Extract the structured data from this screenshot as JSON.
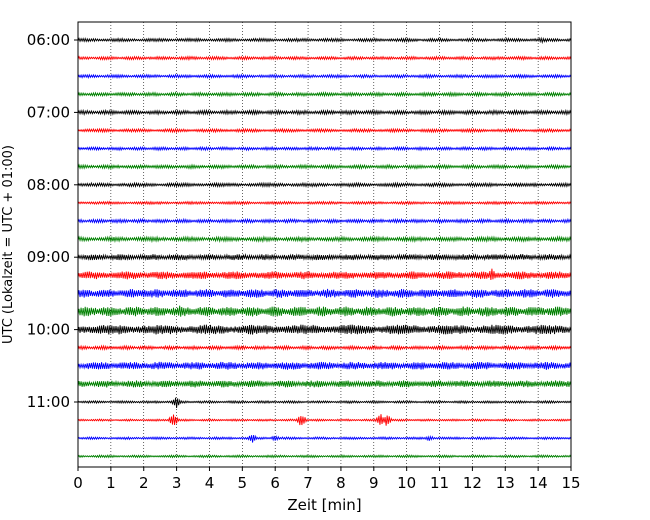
{
  "chart_data": {
    "type": "line",
    "xlabel": "Zeit  [min]",
    "ylabel": "UTC (Lokalzeit = UTC + 01:00)",
    "xlim": [
      0,
      15
    ],
    "x_ticks": [
      "0",
      "1",
      "2",
      "3",
      "4",
      "5",
      "6",
      "7",
      "8",
      "9",
      "10",
      "11",
      "12",
      "13",
      "14",
      "15"
    ],
    "y_ticks": [
      "06:00",
      "07:00",
      "08:00",
      "09:00",
      "10:00",
      "11:00"
    ],
    "grid": "vertical dotted",
    "colors": [
      "#000000",
      "#ff0000",
      "#0000ff",
      "#008000"
    ],
    "traces": [
      {
        "start": "06:00",
        "amp": 1.6,
        "events": [
          {
            "t": 14.1,
            "a": 3
          }
        ]
      },
      {
        "start": "06:15",
        "amp": 1.6,
        "events": []
      },
      {
        "start": "06:30",
        "amp": 1.6,
        "events": []
      },
      {
        "start": "06:45",
        "amp": 1.8,
        "events": []
      },
      {
        "start": "07:00",
        "amp": 2.0,
        "events": []
      },
      {
        "start": "07:15",
        "amp": 1.6,
        "events": []
      },
      {
        "start": "07:30",
        "amp": 1.6,
        "events": []
      },
      {
        "start": "07:45",
        "amp": 1.8,
        "events": []
      },
      {
        "start": "08:00",
        "amp": 1.8,
        "events": []
      },
      {
        "start": "08:15",
        "amp": 1.4,
        "events": []
      },
      {
        "start": "08:30",
        "amp": 1.8,
        "events": []
      },
      {
        "start": "08:45",
        "amp": 2.2,
        "events": []
      },
      {
        "start": "09:00",
        "amp": 3.0,
        "events": [
          {
            "t": 7.3,
            "a": 4
          }
        ]
      },
      {
        "start": "09:15",
        "amp": 4.0,
        "events": [
          {
            "t": 12.6,
            "a": 7
          }
        ]
      },
      {
        "start": "09:30",
        "amp": 4.5,
        "events": [
          {
            "t": 2.0,
            "a": 6
          },
          {
            "t": 13.6,
            "a": 7
          }
        ]
      },
      {
        "start": "09:45",
        "amp": 5.0,
        "events": [
          {
            "t": 3.1,
            "a": 7
          }
        ]
      },
      {
        "start": "10:00",
        "amp": 5.0,
        "events": []
      },
      {
        "start": "10:15",
        "amp": 1.8,
        "events": []
      },
      {
        "start": "10:30",
        "amp": 4.0,
        "events": []
      },
      {
        "start": "10:45",
        "amp": 3.5,
        "events": [
          {
            "t": 14.9,
            "a": 4
          }
        ]
      },
      {
        "start": "11:00",
        "amp": 1.2,
        "events": [
          {
            "t": 3.0,
            "a": 6
          }
        ]
      },
      {
        "start": "11:15",
        "amp": 1.0,
        "events": [
          {
            "t": 2.9,
            "a": 8
          },
          {
            "t": 6.8,
            "a": 7
          },
          {
            "t": 9.2,
            "a": 7
          },
          {
            "t": 9.4,
            "a": 7
          }
        ]
      },
      {
        "start": "11:30",
        "amp": 1.2,
        "events": [
          {
            "t": 5.3,
            "a": 5
          },
          {
            "t": 6.0,
            "a": 3
          },
          {
            "t": 10.7,
            "a": 3
          }
        ]
      },
      {
        "start": "11:45",
        "amp": 1.2,
        "events": []
      }
    ]
  }
}
